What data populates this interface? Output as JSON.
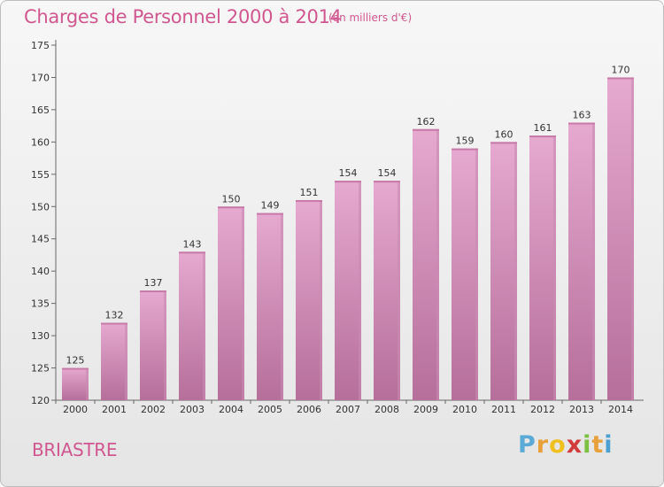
{
  "title": "Charges de Personnel 2000 à 2014",
  "unit_note": "(en milliers d'€)",
  "place": "BRIASTRE",
  "logo": {
    "letters": [
      "P",
      "r",
      "o",
      "x",
      "i",
      "t",
      "i"
    ],
    "colors": [
      "#5aa9d6",
      "#e8a03a",
      "#f0c020",
      "#d13b3b",
      "#7cc142",
      "#e8a03a",
      "#4aa0d0"
    ]
  },
  "colors": {
    "accent": "#d0578f",
    "bar_top": "#e6a9cf",
    "bar_bottom": "#b56f9a",
    "bar_shade": "#c98ab3"
  },
  "chart_data": {
    "type": "bar",
    "categories": [
      "2000",
      "2001",
      "2002",
      "2003",
      "2004",
      "2005",
      "2006",
      "2007",
      "2008",
      "2009",
      "2010",
      "2011",
      "2012",
      "2013",
      "2014"
    ],
    "values": [
      125,
      132,
      137,
      143,
      150,
      149,
      151,
      154,
      154,
      162,
      159,
      160,
      161,
      163,
      170
    ],
    "ylim": [
      120,
      175
    ],
    "yticks": [
      120,
      125,
      130,
      135,
      140,
      145,
      150,
      155,
      160,
      165,
      170,
      175
    ],
    "grid": false,
    "data_labels": true
  }
}
